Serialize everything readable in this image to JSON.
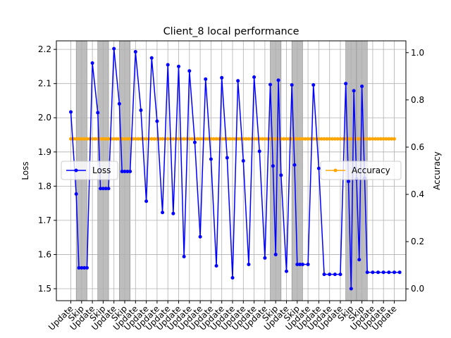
{
  "chart_data": {
    "type": "line",
    "title": "Client_8 local performance",
    "ylabel_left": "Loss",
    "ylabel_right": "Accuracy",
    "xlabel": "",
    "ylim_left": [
      1.465,
      2.225
    ],
    "ylim_right": [
      -0.05,
      1.05
    ],
    "yticks_left": [
      "1.5",
      "1.6",
      "1.7",
      "1.8",
      "1.9",
      "2.0",
      "2.1",
      "2.2"
    ],
    "yticks_right": [
      "0.0",
      "0.2",
      "0.4",
      "0.6",
      "0.8",
      "1.0"
    ],
    "grid": true,
    "x_tick_labels": [
      "Update",
      "Skip",
      "Update",
      "Skip",
      "Update",
      "Skip",
      "Update",
      "Update",
      "Update",
      "Update",
      "Update",
      "Update",
      "Update",
      "Update",
      "Update",
      "Update",
      "Update",
      "Update",
      "Update",
      "Skip",
      "Update",
      "Skip",
      "Update",
      "Update",
      "Update",
      "Update",
      "Skip",
      "Skip",
      "Update",
      "Update",
      "Update"
    ],
    "skip_rounds": [
      1,
      3,
      5,
      19,
      21,
      26,
      27
    ],
    "series": [
      {
        "name": "Loss",
        "axis": "left",
        "color": "#0000ff",
        "x": [
          0,
          0.5,
          0.75,
          1,
          1.25,
          1.5,
          2,
          2.5,
          2.75,
          3,
          3.25,
          3.5,
          4,
          4.5,
          4.75,
          5,
          5.25,
          5.5,
          6,
          6.5,
          7,
          7.5,
          8,
          8.5,
          9,
          9.5,
          10,
          10.5,
          11,
          11.5,
          12,
          12.5,
          13,
          13.5,
          14,
          14.5,
          15,
          15.5,
          16,
          16.5,
          17,
          17.5,
          18,
          18.5,
          18.75,
          19,
          19.25,
          19.5,
          20,
          20.5,
          20.75,
          21,
          21.25,
          21.5,
          22,
          22.5,
          23,
          23.5,
          24,
          24.5,
          25,
          25.5,
          25.75,
          26,
          26.25,
          26.5,
          26.75,
          27,
          27.25,
          27.5,
          28,
          28.5,
          29,
          29.5,
          30,
          30.5
        ],
        "values": [
          2.017,
          1.777,
          1.561,
          1.561,
          1.561,
          1.561,
          2.16,
          2.015,
          1.793,
          1.793,
          1.793,
          1.793,
          2.202,
          2.041,
          1.843,
          1.843,
          1.843,
          1.843,
          2.193,
          2.022,
          1.756,
          2.175,
          1.99,
          1.723,
          2.155,
          1.72,
          2.15,
          1.594,
          2.137,
          1.928,
          1.652,
          2.113,
          1.879,
          1.567,
          2.117,
          1.883,
          1.532,
          2.108,
          1.874,
          1.571,
          2.119,
          1.902,
          1.59,
          2.097,
          1.859,
          1.6,
          2.11,
          1.832,
          1.551,
          2.096,
          1.862,
          1.571,
          1.571,
          1.571,
          1.571,
          2.096,
          1.852,
          1.542,
          1.542,
          1.542,
          1.542,
          2.1,
          1.814,
          1.5,
          2.079,
          1.821,
          1.585,
          2.092,
          1.823,
          1.548,
          1.548,
          1.548,
          1.548,
          1.548,
          1.548,
          1.548
        ]
      },
      {
        "name": "Accuracy",
        "axis": "right",
        "color": "#ffa500",
        "value_constant": 0.635,
        "x_start": 0,
        "x_end": 30,
        "x_step": 0.25
      }
    ],
    "legend_loss_placement": "center-left",
    "legend_accuracy_placement": "center-right"
  }
}
